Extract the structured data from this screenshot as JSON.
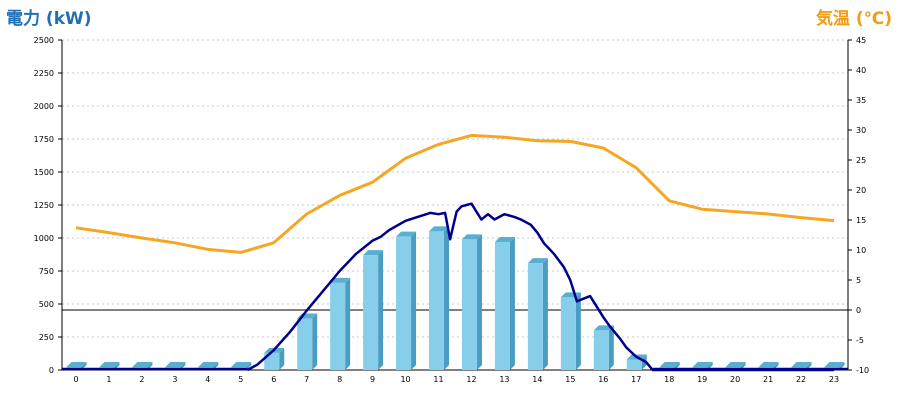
{
  "chart_data": {
    "type": "bar",
    "title_left": "電力 (kW)",
    "title_right": "気温 (℃)",
    "categories": [
      "0",
      "1",
      "2",
      "3",
      "4",
      "5",
      "6",
      "7",
      "8",
      "9",
      "10",
      "11",
      "12",
      "13",
      "14",
      "15",
      "16",
      "17",
      "18",
      "19",
      "20",
      "21",
      "22",
      "23"
    ],
    "y_left": {
      "min": 0,
      "max": 2500,
      "ticks": [
        0,
        250,
        500,
        750,
        1000,
        1250,
        1500,
        1750,
        2000,
        2250,
        2500
      ]
    },
    "y_right": {
      "min": -10,
      "max": 45,
      "ticks": [
        -10,
        -5,
        0,
        5,
        10,
        15,
        20,
        25,
        30,
        35,
        40,
        45
      ]
    },
    "grid": true,
    "series": [
      {
        "kind": "bar",
        "color": "#87ceeb",
        "values": [
          0,
          0,
          0,
          0,
          0,
          0,
          130,
          390,
          660,
          870,
          1010,
          1050,
          990,
          970,
          810,
          550,
          300,
          80,
          0,
          0,
          0,
          0,
          0,
          0
        ]
      },
      {
        "kind": "line",
        "color": "#00008b",
        "x": [
          5.2,
          5.5,
          6,
          6.5,
          7,
          7.5,
          8,
          8.5,
          9,
          9.25,
          9.5,
          10,
          10.5,
          10.75,
          11,
          11.2,
          11.35,
          11.55,
          11.7,
          11.85,
          12,
          12.15,
          12.3,
          12.5,
          12.7,
          13,
          13.3,
          13.5,
          13.8,
          14,
          14.2,
          14.5,
          14.8,
          15,
          15.1,
          15.2,
          15.4,
          15.6,
          15.8,
          16,
          16.2,
          16.5,
          16.7,
          17,
          17.15,
          17.3,
          17.5,
          18,
          19,
          20,
          21,
          22,
          23
        ],
        "y": [
          0,
          40,
          150,
          290,
          450,
          600,
          750,
          880,
          980,
          1010,
          1060,
          1130,
          1170,
          1190,
          1180,
          1190,
          990,
          1200,
          1240,
          1250,
          1260,
          1200,
          1140,
          1180,
          1140,
          1180,
          1160,
          1140,
          1100,
          1040,
          960,
          880,
          780,
          680,
          600,
          520,
          540,
          560,
          480,
          400,
          330,
          240,
          170,
          100,
          80,
          60,
          0,
          0,
          0,
          0,
          0,
          0,
          0
        ]
      },
      {
        "kind": "line",
        "axis": "right",
        "color": "#f5a623",
        "x": [
          0,
          1,
          2,
          3,
          4,
          5,
          6,
          7,
          8,
          9,
          10,
          11,
          12,
          13,
          14,
          15,
          16,
          17,
          18,
          19,
          20,
          21,
          22,
          23
        ],
        "y": [
          13.7,
          12.9,
          12,
          11.2,
          10.1,
          9.6,
          11.2,
          16,
          19.1,
          21.3,
          25.3,
          27.6,
          29.1,
          28.8,
          28.2,
          28.1,
          27,
          23.7,
          18.2,
          16.8,
          16.4,
          16,
          15.4,
          14.9
        ]
      }
    ]
  }
}
